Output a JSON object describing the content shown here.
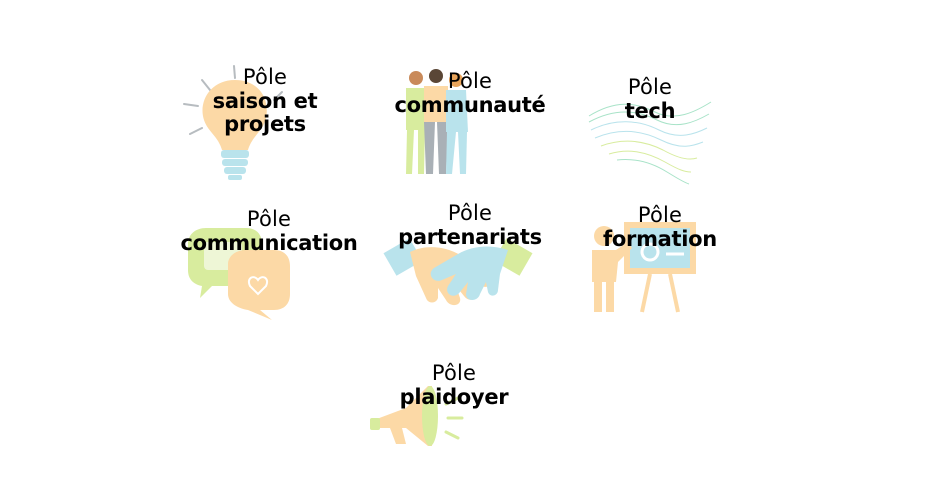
{
  "colors": {
    "peach": "#fcd9a6",
    "light_blue": "#b9e3ec",
    "lime": "#d8ec9e",
    "mint": "#a8e3c8",
    "grey": "#a9b0b6",
    "text": "#000000",
    "background": "#ffffff"
  },
  "poles": [
    {
      "prefix": "Pôle",
      "name": "saison et\nprojets",
      "icon": "lightbulb-icon"
    },
    {
      "prefix": "Pôle",
      "name": "communauté",
      "icon": "people-group-icon"
    },
    {
      "prefix": "Pôle",
      "name": "tech",
      "icon": "wave-mesh-icon"
    },
    {
      "prefix": "Pôle",
      "name": "communication",
      "icon": "speech-bubbles-icon"
    },
    {
      "prefix": "Pôle",
      "name": "partenariats",
      "icon": "handshake-icon"
    },
    {
      "prefix": "Pôle",
      "name": "formation",
      "icon": "teacher-board-icon"
    },
    {
      "prefix": "Pôle",
      "name": "plaidoyer",
      "icon": "megaphone-icon"
    }
  ]
}
